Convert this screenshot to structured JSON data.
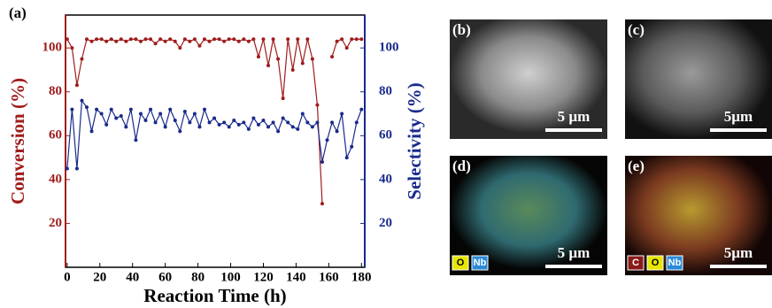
{
  "chart_data": {
    "type": "line",
    "panel_label": "(a)",
    "x_label": "Reaction Time (h)",
    "y_label": "Conversion (%)",
    "y2_label": "Selectivity (%)",
    "x": [
      0,
      3,
      6,
      9,
      12,
      15,
      18,
      21,
      24,
      27,
      30,
      33,
      36,
      39,
      42,
      45,
      48,
      51,
      54,
      57,
      60,
      63,
      66,
      69,
      72,
      75,
      78,
      81,
      84,
      87,
      90,
      93,
      96,
      99,
      102,
      105,
      108,
      111,
      114,
      117,
      120,
      123,
      126,
      129,
      132,
      135,
      138,
      141,
      144,
      147,
      150,
      153,
      156,
      159,
      162,
      165,
      168,
      171,
      174,
      177,
      180
    ],
    "series": [
      {
        "name": "Conversion",
        "color": "#a01c1c",
        "axis": "y",
        "values": [
          104,
          100,
          83,
          95,
          104,
          103,
          104,
          104,
          103,
          104,
          103,
          104,
          103,
          104,
          104,
          103,
          104,
          104,
          102,
          104,
          103,
          104,
          103,
          100,
          104,
          103,
          104,
          101,
          104,
          103,
          104,
          104,
          103,
          104,
          104,
          103,
          104,
          103,
          104,
          96,
          104,
          92,
          104,
          95,
          77,
          104,
          90,
          104,
          93,
          104,
          95,
          74,
          29,
          null,
          96,
          103,
          104,
          100,
          104,
          104,
          104
        ]
      },
      {
        "name": "Selectivity",
        "color": "#1a2a8c",
        "axis": "y2",
        "values": [
          45,
          72,
          45,
          76,
          73,
          62,
          72,
          70,
          65,
          72,
          68,
          69,
          64,
          72,
          58,
          70,
          67,
          72,
          66,
          70,
          64,
          72,
          67,
          62,
          71,
          66,
          70,
          64,
          72,
          66,
          68,
          65,
          66,
          64,
          67,
          65,
          66,
          63,
          68,
          65,
          67,
          64,
          66,
          62,
          68,
          66,
          64,
          63,
          70,
          66,
          64,
          66,
          48,
          58,
          66,
          62,
          70,
          50,
          55,
          66,
          72
        ]
      }
    ],
    "xlim": [
      -1,
      182
    ],
    "xticks": [
      0,
      20,
      40,
      60,
      80,
      100,
      120,
      140,
      160,
      180
    ],
    "ylim": [
      0,
      115
    ],
    "yticks": [
      20,
      40,
      60,
      80,
      100
    ],
    "y2lim": [
      0,
      115
    ],
    "y2ticks": [
      20,
      40,
      60,
      80,
      100
    ]
  },
  "panels": [
    {
      "label": "(b)",
      "scale": "5 µm",
      "elements": []
    },
    {
      "label": "(c)",
      "scale": "5µm",
      "elements": []
    },
    {
      "label": "(d)",
      "scale": "5 µm",
      "elements": [
        "O",
        "Nb"
      ]
    },
    {
      "label": "(e)",
      "scale": "5µm",
      "elements": [
        "C",
        "O",
        "Nb"
      ]
    }
  ]
}
